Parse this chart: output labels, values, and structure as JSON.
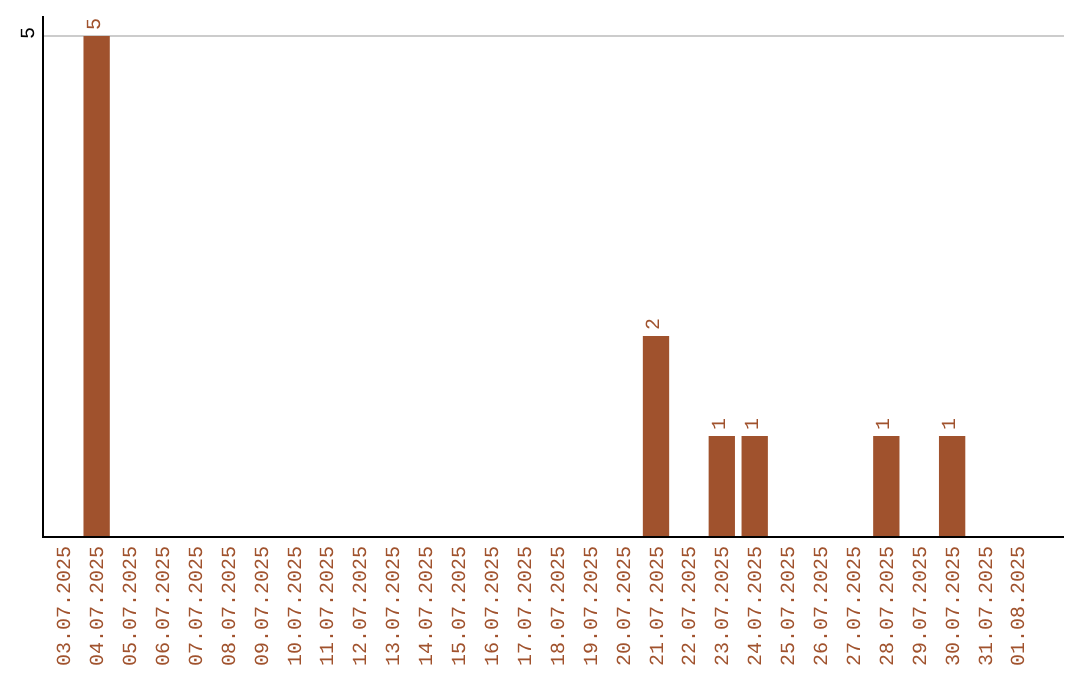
{
  "chart_data": {
    "type": "bar",
    "categories": [
      "03.07.2025",
      "04.07.2025",
      "05.07.2025",
      "06.07.2025",
      "07.07.2025",
      "08.07.2025",
      "09.07.2025",
      "10.07.2025",
      "11.07.2025",
      "12.07.2025",
      "13.07.2025",
      "14.07.2025",
      "15.07.2025",
      "16.07.2025",
      "17.07.2025",
      "18.07.2025",
      "19.07.2025",
      "20.07.2025",
      "21.07.2025",
      "22.07.2025",
      "23.07.2025",
      "24.07.2025",
      "25.07.2025",
      "26.07.2025",
      "27.07.2025",
      "28.07.2025",
      "29.07.2025",
      "30.07.2025",
      "31.07.2025",
      "01.08.2025"
    ],
    "values": [
      0,
      5,
      0,
      0,
      0,
      0,
      0,
      0,
      0,
      0,
      0,
      0,
      0,
      0,
      0,
      0,
      0,
      0,
      2,
      0,
      1,
      1,
      0,
      0,
      0,
      1,
      0,
      1,
      0,
      0
    ],
    "value_labels": [
      null,
      "5",
      null,
      null,
      null,
      null,
      null,
      null,
      null,
      null,
      null,
      null,
      null,
      null,
      null,
      null,
      null,
      null,
      "2",
      null,
      "1",
      "1",
      null,
      null,
      null,
      "1",
      null,
      "1",
      null,
      null
    ],
    "color": "#a0522d",
    "ylim": [
      0,
      5.2
    ],
    "yticks": [
      5
    ],
    "grid": "y",
    "legend": false
  }
}
